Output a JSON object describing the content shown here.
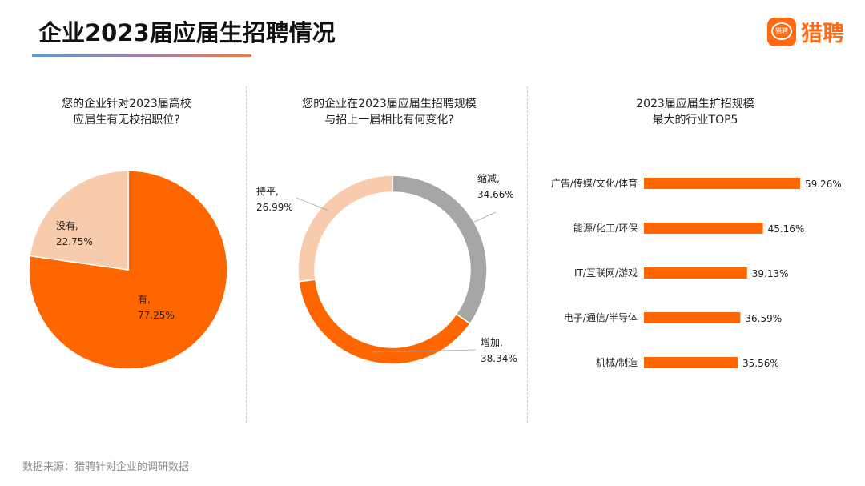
{
  "header": {
    "title": "企业2023届应届生招聘情况",
    "logo_text": "猎聘",
    "logo_mark_text": "猎聘"
  },
  "colors": {
    "orange": "#FF6600",
    "peach": "#F8CBAD",
    "gray": "#A6A6A6"
  },
  "footer": {
    "source": "数据来源：猎聘针对企业的调研数据"
  },
  "chart_data": [
    {
      "type": "pie",
      "title_lines": [
        "您的企业针对2023届高校",
        "应届生有无校招职位?"
      ],
      "slices": [
        {
          "name": "有",
          "label": "有,",
          "value": 77.25,
          "value_label": "77.25%",
          "color": "#FF6600"
        },
        {
          "name": "没有",
          "label": "没有,",
          "value": 22.75,
          "value_label": "22.75%",
          "color": "#F8CBAD"
        }
      ]
    },
    {
      "type": "pie",
      "subtype": "donut",
      "title_lines": [
        "您的企业在2023届应届生招聘规模",
        "与招上一届相比有何变化?"
      ],
      "slices": [
        {
          "name": "缩减",
          "label": "缩减,",
          "value": 34.66,
          "value_label": "34.66%",
          "color": "#A6A6A6"
        },
        {
          "name": "增加",
          "label": "增加,",
          "value": 38.34,
          "value_label": "38.34%",
          "color": "#FF6600"
        },
        {
          "name": "持平",
          "label": "持平,",
          "value": 26.99,
          "value_label": "26.99%",
          "color": "#F8CBAD"
        }
      ]
    },
    {
      "type": "bar",
      "orientation": "horizontal",
      "title_lines": [
        "2023届应届生扩招规模",
        "最大的行业TOP5"
      ],
      "categories": [
        "广告/传媒/文化/体育",
        "能源/化工/环保",
        "IT/互联网/游戏",
        "电子/通信/半导体",
        "机械/制造"
      ],
      "values": [
        59.26,
        45.16,
        39.13,
        36.59,
        35.56
      ],
      "value_labels": [
        "59.26%",
        "45.16%",
        "39.13%",
        "36.59%",
        "35.56%"
      ],
      "unit": "%",
      "color": "#FF6600"
    }
  ]
}
